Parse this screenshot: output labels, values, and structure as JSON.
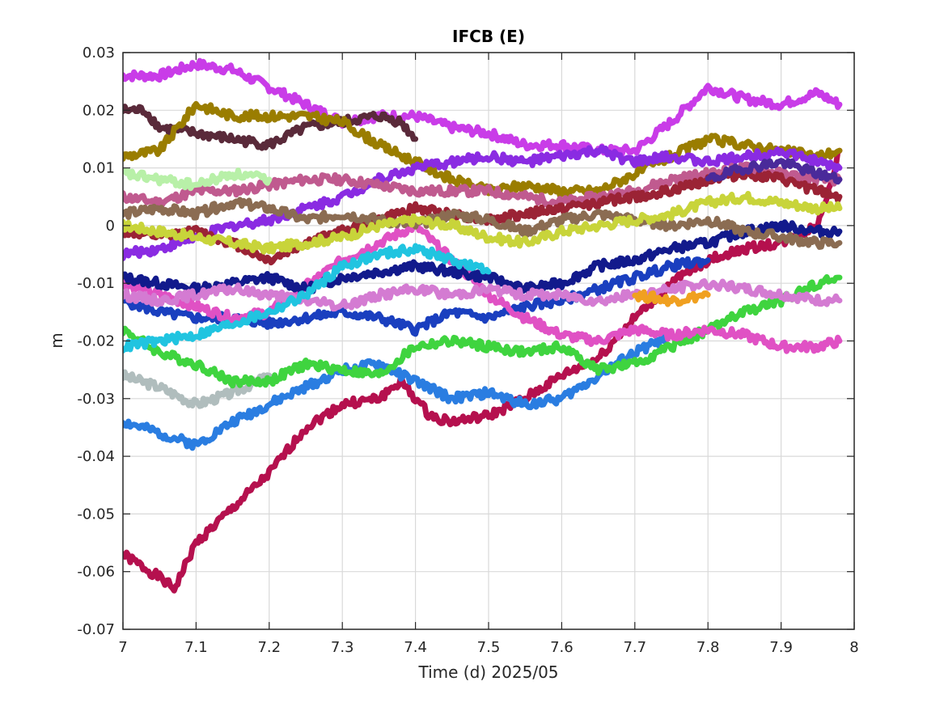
{
  "chart_data": {
    "type": "line",
    "title": "IFCB (E)",
    "xlabel": "Time (d)  2025/05",
    "ylabel": "m",
    "xlim": [
      7,
      8
    ],
    "ylim": [
      -0.07,
      0.03
    ],
    "grid": true,
    "legend": "none",
    "x_ticks": [
      7,
      7.1,
      7.2,
      7.3,
      7.4,
      7.5,
      7.6,
      7.7,
      7.8,
      7.9,
      8
    ],
    "x_tick_labels": [
      "7",
      "7.1",
      "7.2",
      "7.3",
      "7.4",
      "7.5",
      "7.6",
      "7.7",
      "7.8",
      "7.9",
      "8"
    ],
    "y_ticks": [
      0.03,
      0.02,
      0.01,
      0,
      -0.01,
      -0.02,
      -0.03,
      -0.04,
      -0.05,
      -0.06,
      -0.07
    ],
    "y_tick_labels": [
      "0.03",
      "0.02",
      "0.01",
      "0",
      "-0.01",
      "-0.02",
      "-0.03",
      "-0.04",
      "-0.05",
      "-0.06",
      "-0.07"
    ],
    "series": [
      {
        "color": "#b5104e",
        "x": [
          7.0,
          7.05,
          7.07,
          7.1,
          7.15,
          7.2,
          7.25,
          7.3,
          7.35,
          7.38,
          7.42,
          7.45,
          7.5,
          7.55,
          7.6,
          7.65,
          7.7,
          7.75,
          7.8,
          7.85,
          7.9,
          7.95,
          7.98
        ],
        "y": [
          -0.057,
          -0.061,
          -0.063,
          -0.055,
          -0.049,
          -0.043,
          -0.035,
          -0.031,
          -0.03,
          -0.027,
          -0.033,
          -0.034,
          -0.033,
          -0.03,
          -0.026,
          -0.023,
          -0.016,
          -0.01,
          -0.006,
          -0.004,
          -0.003,
          0.0,
          0.013
        ]
      },
      {
        "color": "#2a7de1",
        "x": [
          7.0,
          7.05,
          7.1,
          7.15,
          7.2,
          7.25,
          7.3,
          7.35,
          7.4,
          7.45,
          7.5,
          7.55,
          7.6,
          7.65,
          7.7,
          7.75
        ],
        "y": [
          -0.034,
          -0.036,
          -0.038,
          -0.034,
          -0.031,
          -0.028,
          -0.025,
          -0.024,
          -0.027,
          -0.03,
          -0.029,
          -0.031,
          -0.03,
          -0.026,
          -0.022,
          -0.019
        ]
      },
      {
        "color": "#b0bdbd",
        "x": [
          7.0,
          7.05,
          7.1,
          7.15,
          7.2
        ],
        "y": [
          -0.026,
          -0.028,
          -0.031,
          -0.029,
          -0.026
        ]
      },
      {
        "color": "#3fd43f",
        "x": [
          7.0,
          7.05,
          7.1,
          7.15,
          7.2,
          7.25,
          7.3,
          7.35,
          7.4,
          7.45,
          7.5,
          7.55,
          7.6,
          7.65,
          7.7,
          7.75,
          7.8,
          7.85,
          7.9,
          7.95,
          7.98
        ],
        "y": [
          -0.018,
          -0.022,
          -0.024,
          -0.027,
          -0.027,
          -0.024,
          -0.025,
          -0.026,
          -0.021,
          -0.02,
          -0.021,
          -0.022,
          -0.021,
          -0.025,
          -0.024,
          -0.021,
          -0.018,
          -0.015,
          -0.013,
          -0.01,
          -0.009
        ]
      },
      {
        "color": "#1a3fbf",
        "x": [
          7.0,
          7.05,
          7.1,
          7.15,
          7.2,
          7.25,
          7.3,
          7.35,
          7.4,
          7.45,
          7.5,
          7.55,
          7.6,
          7.65,
          7.7,
          7.75,
          7.8
        ],
        "y": [
          -0.013,
          -0.015,
          -0.016,
          -0.016,
          -0.017,
          -0.016,
          -0.015,
          -0.016,
          -0.018,
          -0.015,
          -0.016,
          -0.014,
          -0.013,
          -0.011,
          -0.009,
          -0.007,
          -0.006
        ]
      },
      {
        "color": "#e051c4",
        "x": [
          7.0,
          7.05,
          7.1,
          7.15,
          7.2,
          7.3,
          7.4,
          7.45,
          7.5,
          7.55,
          7.6,
          7.65,
          7.7,
          7.75,
          7.8,
          7.85,
          7.9,
          7.95,
          7.98
        ],
        "y": [
          -0.01,
          -0.012,
          -0.014,
          -0.016,
          -0.015,
          -0.006,
          0.0,
          -0.006,
          -0.012,
          -0.016,
          -0.019,
          -0.02,
          -0.018,
          -0.019,
          -0.018,
          -0.019,
          -0.021,
          -0.021,
          -0.02
        ]
      },
      {
        "color": "#c93ce8",
        "x": [
          7.0,
          7.05,
          7.1,
          7.15,
          7.2,
          7.25,
          7.3,
          7.35,
          7.4,
          7.45,
          7.5,
          7.55,
          7.6,
          7.65,
          7.7,
          7.75,
          7.8,
          7.85,
          7.9,
          7.95,
          7.98
        ],
        "y": [
          0.026,
          0.026,
          0.028,
          0.027,
          0.024,
          0.021,
          0.018,
          0.019,
          0.019,
          0.017,
          0.016,
          0.014,
          0.014,
          0.013,
          0.013,
          0.018,
          0.024,
          0.022,
          0.021,
          0.023,
          0.021
        ]
      },
      {
        "color": "#5a2a3a",
        "x": [
          7.0,
          7.03,
          7.05,
          7.1,
          7.15,
          7.2,
          7.25,
          7.3,
          7.35,
          7.38,
          7.4
        ],
        "y": [
          0.02,
          0.02,
          0.017,
          0.016,
          0.015,
          0.014,
          0.017,
          0.018,
          0.019,
          0.018,
          0.015
        ]
      },
      {
        "color": "#9a7d00",
        "x": [
          7.0,
          7.05,
          7.1,
          7.15,
          7.2,
          7.25,
          7.3,
          7.35,
          7.4,
          7.45,
          7.5,
          7.55,
          7.6,
          7.65,
          7.7,
          7.75,
          7.8,
          7.85,
          7.9,
          7.95,
          7.98
        ],
        "y": [
          0.012,
          0.013,
          0.021,
          0.019,
          0.019,
          0.019,
          0.018,
          0.014,
          0.011,
          0.008,
          0.006,
          0.007,
          0.006,
          0.006,
          0.009,
          0.012,
          0.015,
          0.014,
          0.013,
          0.012,
          0.013
        ]
      },
      {
        "color": "#8a2be2",
        "x": [
          7.0,
          7.05,
          7.1,
          7.15,
          7.2,
          7.25,
          7.3,
          7.35,
          7.4,
          7.45,
          7.5,
          7.55,
          7.6,
          7.65,
          7.7,
          7.75,
          7.8,
          7.85,
          7.9,
          7.95,
          7.98
        ],
        "y": [
          -0.005,
          -0.004,
          -0.002,
          0.0,
          0.001,
          0.003,
          0.005,
          0.008,
          0.01,
          0.011,
          0.012,
          0.011,
          0.012,
          0.013,
          0.011,
          0.012,
          0.011,
          0.012,
          0.013,
          0.011,
          0.01
        ]
      },
      {
        "color": "#c05a8f",
        "x": [
          7.0,
          7.05,
          7.1,
          7.15,
          7.2,
          7.25,
          7.3,
          7.35,
          7.4,
          7.45,
          7.5,
          7.55,
          7.6,
          7.65,
          7.7,
          7.75,
          7.8,
          7.85,
          7.9,
          7.95,
          7.98
        ],
        "y": [
          0.005,
          0.004,
          0.006,
          0.006,
          0.007,
          0.008,
          0.008,
          0.007,
          0.006,
          0.006,
          0.006,
          0.005,
          0.004,
          0.005,
          0.006,
          0.008,
          0.009,
          0.01,
          0.009,
          0.008,
          0.008
        ]
      },
      {
        "color": "#9b2335",
        "x": [
          7.0,
          7.05,
          7.1,
          7.15,
          7.2,
          7.25,
          7.3,
          7.35,
          7.4,
          7.45,
          7.5,
          7.55,
          7.6,
          7.65,
          7.7,
          7.75,
          7.8,
          7.85,
          7.9,
          7.95,
          7.98
        ],
        "y": [
          -0.001,
          -0.002,
          -0.001,
          -0.003,
          -0.006,
          -0.003,
          -0.001,
          0.001,
          0.003,
          0.002,
          0.001,
          0.002,
          0.003,
          0.004,
          0.005,
          0.006,
          0.008,
          0.009,
          0.008,
          0.006,
          0.005
        ]
      },
      {
        "color": "#121a8c",
        "x": [
          7.0,
          7.05,
          7.1,
          7.15,
          7.2,
          7.25,
          7.3,
          7.35,
          7.4,
          7.45,
          7.5,
          7.55,
          7.6,
          7.65,
          7.7,
          7.75,
          7.8,
          7.85,
          7.9,
          7.95,
          7.98
        ],
        "y": [
          -0.009,
          -0.01,
          -0.011,
          -0.01,
          -0.009,
          -0.011,
          -0.009,
          -0.008,
          -0.007,
          -0.008,
          -0.009,
          -0.011,
          -0.01,
          -0.007,
          -0.006,
          -0.004,
          -0.003,
          -0.001,
          0.0,
          -0.001,
          -0.001
        ]
      },
      {
        "color": "#8b6c52",
        "x": [
          7.0,
          7.05,
          7.1,
          7.15,
          7.2,
          7.25,
          7.3,
          7.35,
          7.4,
          7.45,
          7.5,
          7.55,
          7.6,
          7.65,
          7.7,
          7.75,
          7.8,
          7.85,
          7.9,
          7.95,
          7.98
        ],
        "y": [
          0.002,
          0.003,
          0.002,
          0.004,
          0.003,
          0.001,
          0.002,
          0.001,
          0.0,
          0.002,
          0.001,
          -0.001,
          0.001,
          0.002,
          0.001,
          0.0,
          0.001,
          -0.001,
          -0.002,
          -0.003,
          -0.003
        ]
      },
      {
        "color": "#d47bd2",
        "x": [
          7.0,
          7.05,
          7.1,
          7.15,
          7.2,
          7.25,
          7.3,
          7.35,
          7.4,
          7.45,
          7.5,
          7.55,
          7.6,
          7.65,
          7.7,
          7.75,
          7.8,
          7.85,
          7.9,
          7.95,
          7.98
        ],
        "y": [
          -0.012,
          -0.013,
          -0.012,
          -0.011,
          -0.012,
          -0.013,
          -0.014,
          -0.012,
          -0.011,
          -0.012,
          -0.011,
          -0.012,
          -0.012,
          -0.013,
          -0.012,
          -0.011,
          -0.01,
          -0.011,
          -0.012,
          -0.013,
          -0.013
        ]
      },
      {
        "color": "#20c4e0",
        "x": [
          7.0,
          7.05,
          7.1,
          7.15,
          7.2,
          7.25,
          7.3,
          7.35,
          7.4,
          7.45,
          7.5
        ],
        "y": [
          -0.021,
          -0.02,
          -0.019,
          -0.017,
          -0.015,
          -0.012,
          -0.007,
          -0.005,
          -0.004,
          -0.006,
          -0.008
        ]
      },
      {
        "color": "#c8d43a",
        "x": [
          7.0,
          7.05,
          7.1,
          7.15,
          7.2,
          7.25,
          7.3,
          7.35,
          7.4,
          7.45,
          7.5,
          7.55,
          7.6,
          7.65,
          7.7,
          7.75,
          7.8,
          7.85,
          7.9,
          7.95,
          7.98
        ],
        "y": [
          0.0,
          -0.001,
          -0.002,
          -0.003,
          -0.004,
          -0.003,
          -0.002,
          0.0,
          0.001,
          0.0,
          -0.002,
          -0.003,
          -0.001,
          0.0,
          0.001,
          0.002,
          0.004,
          0.005,
          0.004,
          0.003,
          0.003
        ]
      },
      {
        "color": "#b8f0a8",
        "x": [
          7.0,
          7.05,
          7.1,
          7.15,
          7.2
        ],
        "y": [
          0.009,
          0.008,
          0.007,
          0.009,
          0.008
        ]
      },
      {
        "color": "#4a2a9a",
        "x": [
          7.8,
          7.85,
          7.9,
          7.95,
          7.98
        ],
        "y": [
          0.008,
          0.01,
          0.011,
          0.009,
          0.008
        ]
      },
      {
        "color": "#f0a020",
        "x": [
          7.7,
          7.75,
          7.8
        ],
        "y": [
          -0.012,
          -0.013,
          -0.012
        ]
      }
    ]
  }
}
